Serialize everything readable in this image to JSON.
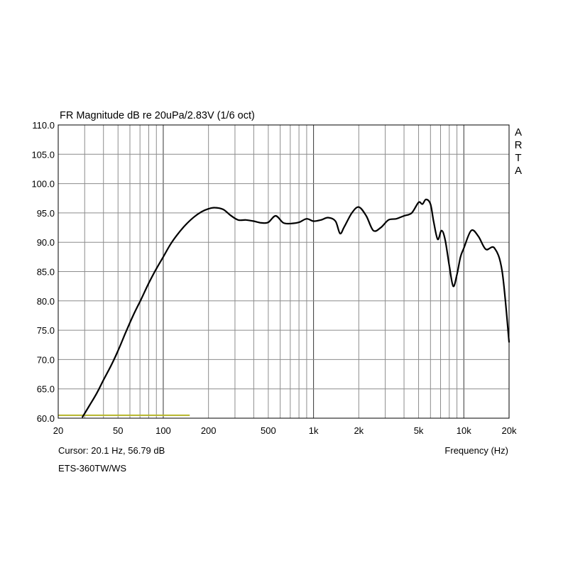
{
  "chart_data": {
    "type": "line",
    "title": "FR Magnitude dB re 20uPa/2.83V (1/6 oct)",
    "watermark": "ARTA",
    "xlabel": "Frequency (Hz)",
    "x_scale": "log",
    "xlim": [
      20,
      20000
    ],
    "ylim": [
      60,
      110
    ],
    "x_ticks": [
      {
        "value": 20,
        "label": "20"
      },
      {
        "value": 50,
        "label": "50"
      },
      {
        "value": 100,
        "label": "100"
      },
      {
        "value": 200,
        "label": "200"
      },
      {
        "value": 500,
        "label": "500"
      },
      {
        "value": 1000,
        "label": "1k"
      },
      {
        "value": 2000,
        "label": "2k"
      },
      {
        "value": 5000,
        "label": "5k"
      },
      {
        "value": 10000,
        "label": "10k"
      },
      {
        "value": 20000,
        "label": "20k"
      }
    ],
    "y_ticks": [
      {
        "value": 60,
        "label": "60.0"
      },
      {
        "value": 65,
        "label": "65.0"
      },
      {
        "value": 70,
        "label": "70.0"
      },
      {
        "value": 75,
        "label": "75.0"
      },
      {
        "value": 80,
        "label": "80.0"
      },
      {
        "value": 85,
        "label": "85.0"
      },
      {
        "value": 90,
        "label": "90.0"
      },
      {
        "value": 95,
        "label": "95.0"
      },
      {
        "value": 100,
        "label": "100.0"
      },
      {
        "value": 105,
        "label": "105.0"
      },
      {
        "value": 110,
        "label": "110.0"
      }
    ],
    "grid": true,
    "cursor_text": "Cursor: 20.1 Hz, 56.79 dB",
    "device_label": "ETS-360TW/WS",
    "reference_line": {
      "x": [
        20,
        150
      ],
      "y": 60.5,
      "color": "#b5b52a"
    },
    "series": [
      {
        "color": "#000000",
        "x": [
          29,
          32,
          36,
          40,
          45,
          50,
          56,
          63,
          71,
          80,
          90,
          100,
          112,
          125,
          140,
          160,
          180,
          200,
          220,
          250,
          280,
          315,
          355,
          400,
          450,
          500,
          560,
          630,
          710,
          800,
          900,
          1000,
          1120,
          1250,
          1400,
          1500,
          1600,
          1800,
          2000,
          2240,
          2500,
          2800,
          3150,
          3550,
          4000,
          4500,
          5000,
          5300,
          5600,
          6000,
          6300,
          6700,
          7100,
          7500,
          8000,
          8500,
          9000,
          9500,
          10000,
          11200,
          12500,
          14000,
          16000,
          18000,
          20000
        ],
        "y": [
          60.2,
          62.0,
          64.2,
          66.5,
          69.0,
          71.5,
          74.5,
          77.5,
          80.2,
          83.0,
          85.5,
          87.5,
          89.7,
          91.4,
          92.9,
          94.3,
          95.2,
          95.7,
          95.9,
          95.6,
          94.6,
          93.8,
          93.8,
          93.6,
          93.3,
          93.4,
          94.5,
          93.3,
          93.2,
          93.4,
          94.0,
          93.6,
          93.8,
          94.2,
          93.6,
          91.5,
          92.6,
          95.0,
          96.0,
          94.5,
          92.0,
          92.5,
          93.8,
          94.0,
          94.5,
          95.0,
          96.8,
          96.5,
          97.3,
          96.5,
          93.5,
          90.5,
          92.0,
          90.5,
          86.0,
          82.5,
          84.5,
          87.5,
          89.0,
          92.0,
          91.0,
          88.8,
          89.0,
          85.0,
          73.0
        ]
      }
    ]
  }
}
